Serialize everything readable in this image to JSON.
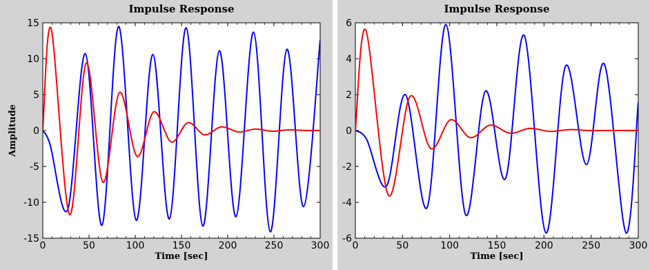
{
  "chart_data": [
    {
      "type": "line",
      "title": "Impulse Response",
      "xlabel": "Time [sec]",
      "ylabel": "Amplitude",
      "xlim": [
        0,
        300
      ],
      "ylim": [
        -15,
        15
      ],
      "xticks": [
        0,
        50,
        100,
        150,
        200,
        250,
        300
      ],
      "yticks": [
        15,
        10,
        5,
        0,
        -5,
        -10,
        -15
      ],
      "grid": false,
      "series": [
        {
          "color": "#0000ff",
          "x": [
            0,
            8,
            27,
            46,
            64,
            82,
            101,
            119,
            137,
            155,
            173,
            191,
            209,
            228,
            246,
            264,
            282,
            300
          ],
          "y": [
            0,
            -2,
            -11,
            10.7,
            -13.2,
            14.5,
            -12.5,
            10.6,
            -12.3,
            14.3,
            -13.3,
            11.1,
            -12.0,
            13.7,
            -14.1,
            11.3,
            -10.6,
            12.6
          ]
        },
        {
          "color": "#ff0000",
          "x": [
            0,
            9,
            29,
            47,
            65,
            83,
            102,
            120,
            139,
            157,
            175,
            193,
            212,
            230,
            248,
            266,
            285,
            300
          ],
          "y": [
            0,
            14.2,
            -11.7,
            9.4,
            -7.2,
            5.3,
            -3.6,
            2.6,
            -1.6,
            1.1,
            -0.6,
            0.5,
            -0.2,
            0.2,
            -0.1,
            0.1,
            0,
            0
          ]
        }
      ]
    },
    {
      "type": "line",
      "title": "Impulse Response",
      "xlabel": "Time [sec]",
      "ylabel": "",
      "xlim": [
        0,
        300
      ],
      "ylim": [
        -6,
        6
      ],
      "xticks": [
        0,
        50,
        100,
        150,
        200,
        250,
        300
      ],
      "yticks": [
        6,
        4,
        2,
        0,
        -2,
        -4,
        -6
      ],
      "grid": false,
      "series": [
        {
          "color": "#0000ff",
          "x": [
            0,
            12,
            33,
            53,
            76,
            96,
            117,
            138,
            159,
            179,
            202,
            223,
            245,
            264,
            287,
            300
          ],
          "y": [
            0,
            -0.5,
            -3.1,
            2.0,
            -4.3,
            5.9,
            -4.7,
            2.2,
            -2.7,
            5.3,
            -5.7,
            3.6,
            -1.9,
            3.7,
            -5.7,
            1.6
          ]
        },
        {
          "color": "#ff0000",
          "x": [
            0,
            11,
            35,
            58,
            80,
            101,
            122,
            143,
            164,
            185,
            206,
            227,
            248,
            269,
            290,
            300
          ],
          "y": [
            0,
            5.6,
            -3.6,
            1.9,
            -1.0,
            0.6,
            -0.4,
            0.3,
            -0.15,
            0.12,
            -0.05,
            0.05,
            0,
            0,
            0,
            0
          ]
        }
      ]
    }
  ]
}
